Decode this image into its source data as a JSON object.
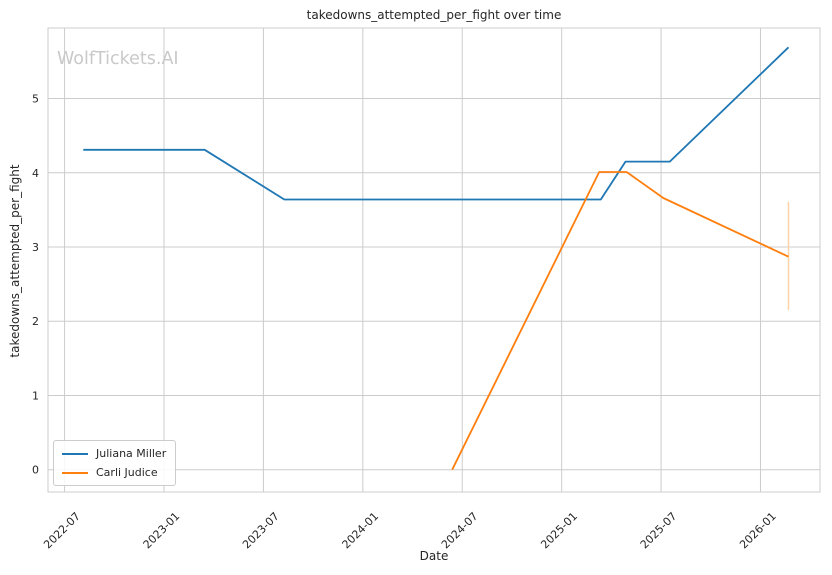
{
  "figure": {
    "watermark": "WolfTickets.AI"
  },
  "chart_data": {
    "type": "line",
    "title": "takedowns_attempted_per_fight over time",
    "xlabel": "Date",
    "ylabel": "takedowns_attempted_per_fight",
    "grid": true,
    "legend_position": "lower left",
    "x_ticks": [
      {
        "date": "2022-07-01",
        "label": "2022-07"
      },
      {
        "date": "2023-01-01",
        "label": "2023-01"
      },
      {
        "date": "2023-07-01",
        "label": "2023-07"
      },
      {
        "date": "2024-01-01",
        "label": "2024-01"
      },
      {
        "date": "2024-07-01",
        "label": "2024-07"
      },
      {
        "date": "2025-01-01",
        "label": "2025-01"
      },
      {
        "date": "2025-07-01",
        "label": "2025-07"
      },
      {
        "date": "2026-01-01",
        "label": "2026-01"
      }
    ],
    "y_ticks": [
      {
        "value": 0,
        "label": "0"
      },
      {
        "value": 1,
        "label": "1"
      },
      {
        "value": 2,
        "label": "2"
      },
      {
        "value": 3,
        "label": "3"
      },
      {
        "value": 4,
        "label": "4"
      },
      {
        "value": 5,
        "label": "5"
      }
    ],
    "xlim": [
      "2022-06-01",
      "2026-04-19"
    ],
    "ylim": [
      -0.3,
      5.95
    ],
    "series": [
      {
        "name": "Juliana Miller",
        "color": "#1f77b4",
        "points": [
          [
            "2022-08-05",
            4.31
          ],
          [
            "2023-03-15",
            4.31
          ],
          [
            "2023-08-09",
            3.64
          ],
          [
            "2025-03-12",
            3.64
          ],
          [
            "2025-04-27",
            4.15
          ],
          [
            "2025-07-17",
            4.15
          ],
          [
            "2026-02-22",
            5.69
          ]
        ]
      },
      {
        "name": "Carli Judice",
        "color": "#ff7f0e",
        "points": [
          [
            "2024-06-13",
            0.0
          ],
          [
            "2025-03-09",
            4.01
          ],
          [
            "2025-04-29",
            4.01
          ],
          [
            "2025-07-05",
            3.66
          ],
          [
            "2026-02-22",
            2.87
          ]
        ],
        "error_bar": {
          "date": "2026-02-22",
          "y_low": 2.15,
          "y_high": 3.61
        }
      }
    ],
    "colors": {
      "grid": "#cccccc",
      "spine": "#cccccc",
      "text": "#262626",
      "watermark": "#c9c9c9",
      "error_bar": "#ffd2a8"
    }
  }
}
